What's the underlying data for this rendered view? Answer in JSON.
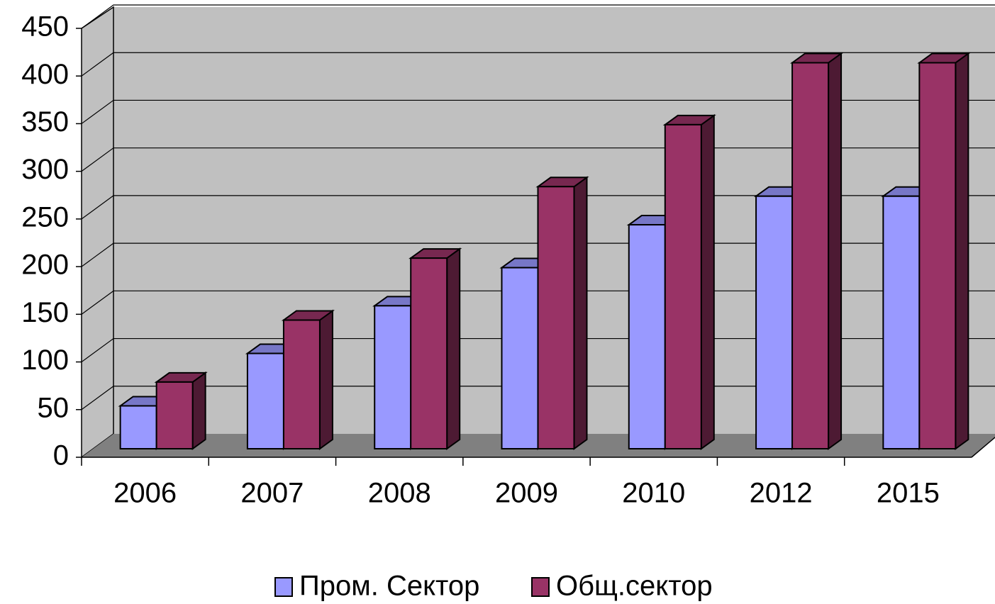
{
  "chart_data": {
    "type": "bar3d",
    "categories": [
      "2006",
      "2007",
      "2008",
      "2009",
      "2010",
      "2012",
      "2015"
    ],
    "series": [
      {
        "name": "Пром. Сектор",
        "color": "#9999ff",
        "values": [
          45,
          100,
          150,
          190,
          235,
          265,
          265
        ]
      },
      {
        "name": "Общ.сектор",
        "color": "#993366",
        "values": [
          70,
          135,
          200,
          275,
          340,
          405,
          405
        ]
      }
    ],
    "ylim": [
      0,
      450
    ],
    "yticks": [
      0,
      50,
      100,
      150,
      200,
      250,
      300,
      350,
      400,
      450
    ],
    "grid": true,
    "legend": "bottom"
  }
}
